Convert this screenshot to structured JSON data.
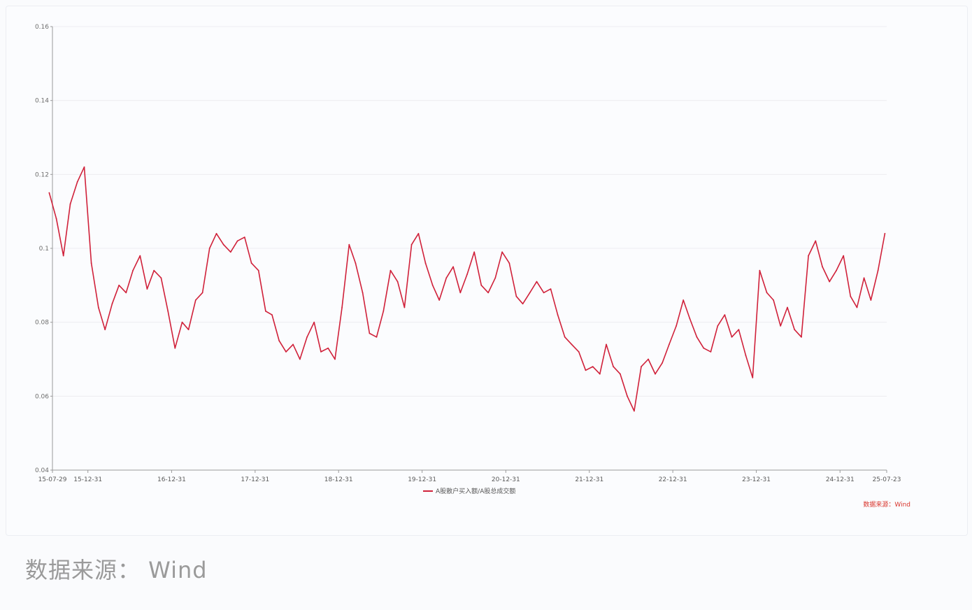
{
  "chart_data": {
    "type": "line",
    "title": "",
    "xlabel": "",
    "ylabel": "",
    "ylim": [
      0.04,
      0.16
    ],
    "y_ticks": [
      "0.04",
      "0.06",
      "0.08",
      "0.1",
      "0.12",
      "0.14",
      "0.16"
    ],
    "x_ticks": [
      "15-07-29",
      "15-12-31",
      "16-12-31",
      "17-12-31",
      "18-12-31",
      "19-12-31",
      "20-12-31",
      "21-12-31",
      "22-12-31",
      "23-12-31",
      "24-12-31",
      "25-07-23"
    ],
    "x_range": [
      "2015-07-29",
      "2025-07-23"
    ],
    "grid": true,
    "legend_position": "bottom-center",
    "color": "#d0213a",
    "series": [
      {
        "name": "A股散户买入额/A股总成交额",
        "x": [
          "2015-07",
          "2015-08",
          "2015-09",
          "2015-10",
          "2015-11",
          "2015-12",
          "2016-01",
          "2016-02",
          "2016-03",
          "2016-04",
          "2016-05",
          "2016-06",
          "2016-07",
          "2016-08",
          "2016-09",
          "2016-10",
          "2016-11",
          "2016-12",
          "2017-01",
          "2017-02",
          "2017-03",
          "2017-04",
          "2017-05",
          "2017-06",
          "2017-07",
          "2017-08",
          "2017-09",
          "2017-10",
          "2017-11",
          "2017-12",
          "2018-01",
          "2018-02",
          "2018-03",
          "2018-04",
          "2018-05",
          "2018-06",
          "2018-07",
          "2018-08",
          "2018-09",
          "2018-10",
          "2018-11",
          "2018-12",
          "2019-01",
          "2019-02",
          "2019-03",
          "2019-04",
          "2019-05",
          "2019-06",
          "2019-07",
          "2019-08",
          "2019-09",
          "2019-10",
          "2019-11",
          "2019-12",
          "2020-01",
          "2020-02",
          "2020-03",
          "2020-04",
          "2020-05",
          "2020-06",
          "2020-07",
          "2020-08",
          "2020-09",
          "2020-10",
          "2020-11",
          "2020-12",
          "2021-01",
          "2021-02",
          "2021-03",
          "2021-04",
          "2021-05",
          "2021-06",
          "2021-07",
          "2021-08",
          "2021-09",
          "2021-10",
          "2021-11",
          "2021-12",
          "2022-01",
          "2022-02",
          "2022-03",
          "2022-04",
          "2022-05",
          "2022-06",
          "2022-07",
          "2022-08",
          "2022-09",
          "2022-10",
          "2022-11",
          "2022-12",
          "2023-01",
          "2023-02",
          "2023-03",
          "2023-04",
          "2023-05",
          "2023-06",
          "2023-07",
          "2023-08",
          "2023-09",
          "2023-10",
          "2023-11",
          "2023-12",
          "2024-01",
          "2024-02",
          "2024-03",
          "2024-04",
          "2024-05",
          "2024-06",
          "2024-07",
          "2024-08",
          "2024-09",
          "2024-10",
          "2024-11",
          "2024-12",
          "2025-01",
          "2025-02",
          "2025-03",
          "2025-04",
          "2025-05",
          "2025-06",
          "2025-07"
        ],
        "values": [
          0.115,
          0.108,
          0.098,
          0.112,
          0.118,
          0.122,
          0.096,
          0.084,
          0.078,
          0.085,
          0.09,
          0.088,
          0.094,
          0.098,
          0.089,
          0.094,
          0.092,
          0.083,
          0.073,
          0.08,
          0.078,
          0.086,
          0.088,
          0.1,
          0.104,
          0.101,
          0.099,
          0.102,
          0.103,
          0.096,
          0.094,
          0.083,
          0.082,
          0.075,
          0.072,
          0.074,
          0.07,
          0.076,
          0.08,
          0.072,
          0.073,
          0.07,
          0.084,
          0.101,
          0.096,
          0.088,
          0.077,
          0.076,
          0.083,
          0.094,
          0.091,
          0.084,
          0.101,
          0.104,
          0.096,
          0.09,
          0.086,
          0.092,
          0.095,
          0.088,
          0.093,
          0.099,
          0.09,
          0.088,
          0.092,
          0.099,
          0.096,
          0.087,
          0.085,
          0.088,
          0.091,
          0.088,
          0.089,
          0.082,
          0.076,
          0.074,
          0.072,
          0.067,
          0.068,
          0.066,
          0.074,
          0.068,
          0.066,
          0.06,
          0.056,
          0.068,
          0.07,
          0.066,
          0.069,
          0.074,
          0.079,
          0.086,
          0.081,
          0.076,
          0.073,
          0.072,
          0.079,
          0.082,
          0.076,
          0.078,
          0.071,
          0.065,
          0.094,
          0.088,
          0.086,
          0.079,
          0.084,
          0.078,
          0.076,
          0.098,
          0.102,
          0.095,
          0.091,
          0.094,
          0.098,
          0.087,
          0.084,
          0.092,
          0.086,
          0.094,
          0.104
        ]
      }
    ]
  },
  "legend": {
    "label": "A股散户买入额/A股总成交额"
  },
  "chart_source_label": "数据来源：Wind",
  "footer_source_label": "数据来源： Wind"
}
